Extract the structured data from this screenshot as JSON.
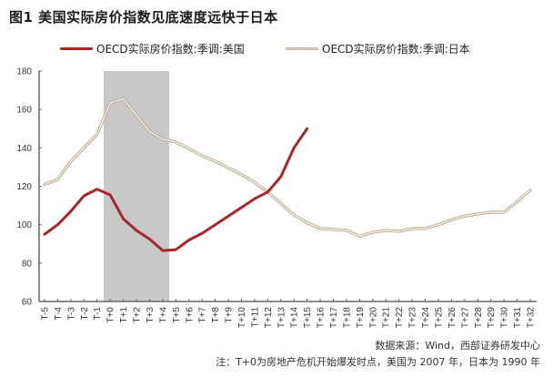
{
  "figure": {
    "title": "图1  美国实际房价指数见底速度远快于日本",
    "source": "数据来源：Wind，西部证券研发中心",
    "note": "注：T+0为房地产危机开始爆发时点，美国为 2007 年，日本为 1990 年"
  },
  "legend": {
    "us_label": "OECD实际房价指数:季调:美国",
    "jp_label": "OECD实际房价指数:季调:日本"
  },
  "colors": {
    "us": "#a8262b",
    "jp": "#d8cdbd",
    "jp_edge": "#b8a88f",
    "shade": "#c8c8c8",
    "axis": "#666666"
  },
  "chart_data": {
    "type": "line",
    "title": "美国实际房价指数见底速度远快于日本",
    "xlabel": "",
    "ylabel": "",
    "ylim": [
      60,
      180
    ],
    "yticks": [
      60,
      80,
      100,
      120,
      140,
      160,
      180
    ],
    "grid": false,
    "legend_position": "top",
    "shaded_region": {
      "from": "T-1/T+0 midpoint",
      "to": "T+4/T+5 midpoint",
      "ymax": 180
    },
    "x": [
      "T-5",
      "T-4",
      "T-3",
      "T-2",
      "T-1",
      "T+0",
      "T+1",
      "T+2",
      "T+3",
      "T+4",
      "T+5",
      "T+6",
      "T+7",
      "T+8",
      "T+9",
      "T+10",
      "T+11",
      "T+12",
      "T+13",
      "T+14",
      "T+15",
      "T+16",
      "T+17",
      "T+18",
      "T+19",
      "T+20",
      "T+21",
      "T+22",
      "T+23",
      "T+24",
      "T+25",
      "T+26",
      "T+27",
      "T+28",
      "T+29",
      "T+30",
      "T+31",
      "T+32"
    ],
    "series": [
      {
        "name": "OECD实际房价指数:季调:美国",
        "values": [
          95,
          100,
          107,
          115,
          118.5,
          115.5,
          103,
          97,
          92.5,
          86.5,
          87,
          92,
          95.5,
          100,
          104.5,
          109,
          113.5,
          117,
          125,
          140,
          150,
          null,
          null,
          null,
          null,
          null,
          null,
          null,
          null,
          null,
          null,
          null,
          null,
          null,
          null,
          null,
          null,
          null
        ]
      },
      {
        "name": "OECD实际房价指数:季调:日本",
        "values": [
          121,
          123.5,
          133,
          140,
          147,
          163.5,
          165.5,
          157,
          148.5,
          144.5,
          143,
          139.5,
          136,
          133,
          129.5,
          126,
          122,
          117,
          111,
          105,
          101,
          98,
          97.5,
          97,
          94,
          96,
          97,
          96.5,
          98,
          98,
          100,
          102.5,
          104.5,
          105.5,
          106.5,
          106.5,
          112,
          118
        ]
      }
    ]
  }
}
